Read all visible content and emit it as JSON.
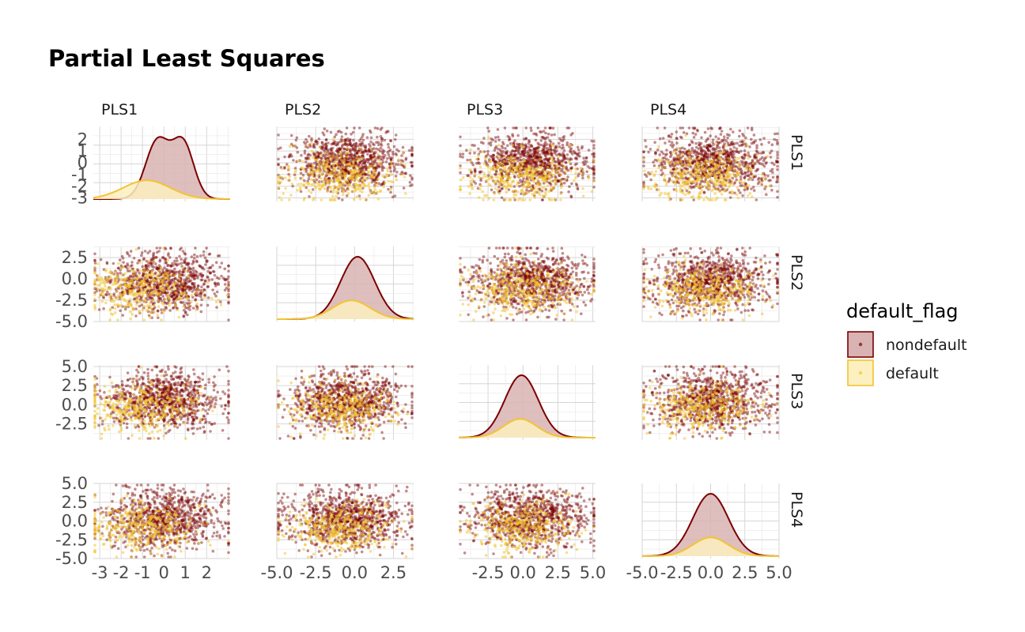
{
  "chart_data": {
    "type": "scatter",
    "title": "Partial Least Squares",
    "variables": [
      "PLS1",
      "PLS2",
      "PLS3",
      "PLS4"
    ],
    "layout": "pairs-matrix",
    "diagonal": "density",
    "off_diagonal": "scatter",
    "grid": true,
    "legend": {
      "title": "default_flag",
      "placement": "right",
      "entries": [
        {
          "label": "nondefault",
          "color": "#7b0000",
          "fill": "#d9b3b3"
        },
        {
          "label": "default",
          "color": "#f2c432",
          "fill": "#fcf0c0"
        }
      ]
    },
    "axes": {
      "PLS1": {
        "range": [
          -3.3,
          3.1
        ],
        "ticks": [
          -3,
          -2,
          -1,
          0,
          1,
          2
        ],
        "tick_labels": [
          "-3",
          "-2",
          "-1",
          "0",
          "1",
          "2"
        ]
      },
      "PLS2": {
        "range": [
          -5.0,
          3.8
        ],
        "ticks": [
          -5.0,
          -2.5,
          0.0,
          2.5
        ],
        "tick_labels": [
          "-5.0",
          "-2.5",
          "0.0",
          "2.5"
        ]
      },
      "PLS3": {
        "range": [
          -4.6,
          5.2
        ],
        "ticks": [
          -2.5,
          0.0,
          2.5,
          5.0
        ],
        "tick_labels": [
          "-2.5",
          "0.0",
          "2.5",
          "5.0"
        ],
        "y_ticks": [
          -2.5,
          0.0,
          2.5,
          5.0
        ],
        "y_tick_labels": [
          "-2.5",
          "0.0",
          "2.5",
          "5.0"
        ]
      },
      "PLS4": {
        "range": [
          -5.0,
          5.0
        ],
        "ticks": [
          -5.0,
          -2.5,
          0.0,
          2.5,
          5.0
        ],
        "tick_labels": [
          "-5.0",
          "-2.5",
          "0.0",
          "2.5",
          "5.0"
        ]
      }
    },
    "distributions": {
      "nondefault": {
        "PLS1": {
          "modes": [
            [
              -0.3,
              0.75
            ],
            [
              0.9,
              0.65
            ]
          ],
          "sd": [
            0.55,
            0.5
          ]
        },
        "PLS2": {
          "mean": 0.2,
          "sd": 1.1
        },
        "PLS3": {
          "mean": -0.1,
          "sd": 1.2
        },
        "PLS4": {
          "mean": 0.0,
          "sd": 1.3
        },
        "peak_ratio": 1.0
      },
      "default": {
        "PLS1": {
          "mean": -0.8,
          "sd": 1.1
        },
        "PLS2": {
          "mean": -0.2,
          "sd": 1.2
        },
        "PLS3": {
          "mean": -0.2,
          "sd": 1.2
        },
        "PLS4": {
          "mean": 0.0,
          "sd": 1.3
        },
        "peak_ratio": 0.3
      }
    }
  }
}
